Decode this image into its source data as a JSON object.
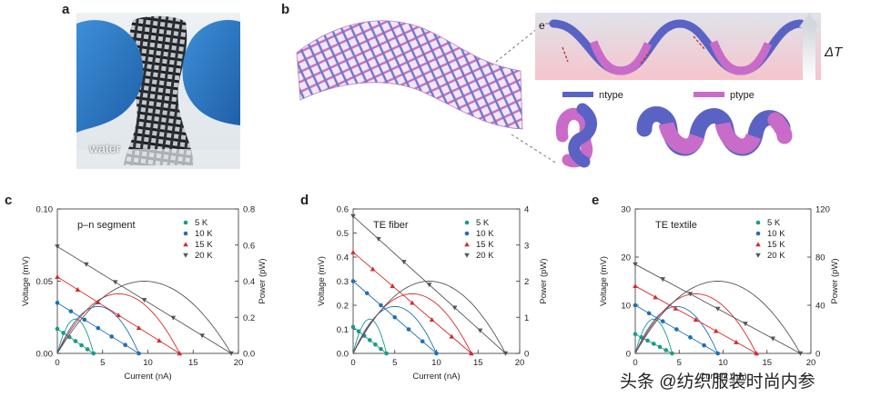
{
  "figure": {
    "panels": {
      "a": "a",
      "b": "b",
      "c": "c",
      "d": "d",
      "e": "e"
    },
    "photo": {
      "label": "water"
    },
    "schematic": {
      "electron_left": "e⁻",
      "electron_right": "e⁻",
      "delta_t": "ΔT",
      "legend_n": "ntype",
      "legend_p": "ptype",
      "n_color": "#5a63c4",
      "p_color": "#c96bc8"
    },
    "watermark": "头条 @纺织服装时尚内参",
    "legend_labels": [
      "5 K",
      "10 K",
      "15 K",
      "20 K"
    ],
    "series_colors": [
      "#1a9a8a",
      "#1f6fb5",
      "#d42a2a",
      "#555555"
    ]
  },
  "chart_data": [
    {
      "type": "line",
      "panel": "c",
      "annotation": "p–n segment",
      "xlabel": "Current (nA)",
      "ylabel": "Voltage (mV)",
      "y2label": "Power (pW)",
      "xlim": [
        0,
        20
      ],
      "ylim": [
        0,
        0.1
      ],
      "y2lim": [
        0,
        0.8
      ],
      "xticks": [
        "0",
        "5",
        "10",
        "15",
        "20"
      ],
      "yticks": [
        "0.00",
        "0.05",
        "0.10"
      ],
      "y2ticks": [
        "0.0",
        "0.2",
        "0.4",
        "0.6",
        "0.8"
      ],
      "series": [
        {
          "name": "5 K",
          "voc": 0.017,
          "isc": 4.0,
          "marker": "circle",
          "color": "#1a9a8a"
        },
        {
          "name": "10 K",
          "voc": 0.035,
          "isc": 9.0,
          "marker": "circle",
          "color": "#1f6fb5"
        },
        {
          "name": "15 K",
          "voc": 0.053,
          "isc": 13.5,
          "marker": "triangle-up",
          "color": "#d42a2a"
        },
        {
          "name": "20 K",
          "voc": 0.074,
          "isc": 19.2,
          "marker": "triangle-down",
          "color": "#555555"
        }
      ]
    },
    {
      "type": "line",
      "panel": "d",
      "annotation": "TE fiber",
      "xlabel": "Current (nA)",
      "ylabel": "Voltage (mV)",
      "y2label": "Power (pW)",
      "xlim": [
        0,
        20
      ],
      "ylim": [
        0,
        0.6
      ],
      "y2lim": [
        0,
        4
      ],
      "xticks": [
        "0",
        "5",
        "10",
        "15",
        "20"
      ],
      "yticks": [
        "0.0",
        "0.1",
        "0.2",
        "0.3",
        "0.4",
        "0.5",
        "0.6"
      ],
      "y2ticks": [
        "0",
        "1",
        "2",
        "3",
        "4"
      ],
      "series": [
        {
          "name": "5 K",
          "voc": 0.11,
          "isc": 4.0,
          "marker": "circle",
          "color": "#1a9a8a"
        },
        {
          "name": "10 K",
          "voc": 0.3,
          "isc": 10.0,
          "marker": "circle",
          "color": "#1f6fb5"
        },
        {
          "name": "15 K",
          "voc": 0.42,
          "isc": 14.2,
          "marker": "triangle-up",
          "color": "#d42a2a"
        },
        {
          "name": "20 K",
          "voc": 0.57,
          "isc": 18.3,
          "marker": "triangle-down",
          "color": "#555555"
        }
      ]
    },
    {
      "type": "line",
      "panel": "e",
      "annotation": "TE textile",
      "xlabel": "Current (nA)",
      "ylabel": "Voltage (mV)",
      "y2label": "Power (pW)",
      "xlim": [
        0,
        20
      ],
      "ylim": [
        0,
        30
      ],
      "y2lim": [
        0,
        120
      ],
      "xticks": [
        "0",
        "5",
        "10",
        "15",
        "20"
      ],
      "yticks": [
        "0",
        "10",
        "20",
        "30"
      ],
      "y2ticks": [
        "0",
        "40",
        "80",
        "120"
      ],
      "series": [
        {
          "name": "5 K",
          "voc": 4.0,
          "isc": 4.2,
          "marker": "circle",
          "color": "#1a9a8a"
        },
        {
          "name": "10 K",
          "voc": 10.0,
          "isc": 9.4,
          "marker": "circle",
          "color": "#1f6fb5"
        },
        {
          "name": "15 K",
          "voc": 14.0,
          "isc": 13.8,
          "marker": "triangle-up",
          "color": "#d42a2a"
        },
        {
          "name": "20 K",
          "voc": 18.5,
          "isc": 18.8,
          "marker": "triangle-down",
          "color": "#555555"
        }
      ]
    }
  ]
}
